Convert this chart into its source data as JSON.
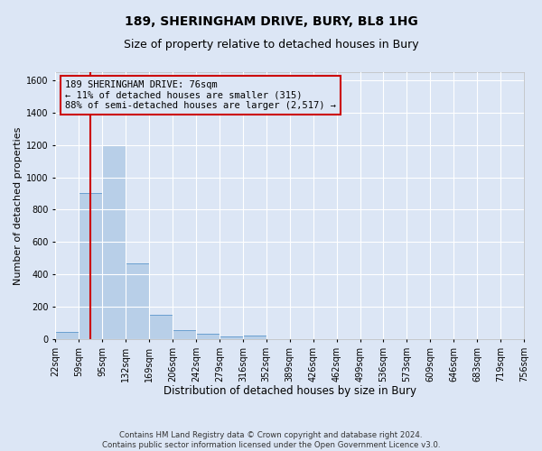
{
  "title1": "189, SHERINGHAM DRIVE, BURY, BL8 1HG",
  "title2": "Size of property relative to detached houses in Bury",
  "xlabel": "Distribution of detached houses by size in Bury",
  "ylabel": "Number of detached properties",
  "footer1": "Contains HM Land Registry data © Crown copyright and database right 2024.",
  "footer2": "Contains public sector information licensed under the Open Government Licence v3.0.",
  "annotation_line1": "189 SHERINGHAM DRIVE: 76sqm",
  "annotation_line2": "← 11% of detached houses are smaller (315)",
  "annotation_line3": "88% of semi-detached houses are larger (2,517) →",
  "bar_values": [
    45,
    900,
    1200,
    470,
    150,
    55,
    30,
    15,
    20,
    0,
    0,
    0,
    0,
    0,
    0,
    0,
    0,
    0,
    0,
    0
  ],
  "bin_labels": [
    "22sqm",
    "59sqm",
    "95sqm",
    "132sqm",
    "169sqm",
    "206sqm",
    "242sqm",
    "279sqm",
    "316sqm",
    "352sqm",
    "389sqm",
    "426sqm",
    "462sqm",
    "499sqm",
    "536sqm",
    "573sqm",
    "609sqm",
    "646sqm",
    "683sqm",
    "719sqm",
    "756sqm"
  ],
  "bar_color": "#b8cfe8",
  "bar_edge_color": "#6a9fd0",
  "vline_bar_index": 1,
  "vline_color": "#cc0000",
  "ylim": [
    0,
    1650
  ],
  "yticks": [
    0,
    200,
    400,
    600,
    800,
    1000,
    1200,
    1400,
    1600
  ],
  "bg_color": "#dce6f5",
  "grid_color": "#ffffff",
  "annotation_box_color": "#cc0000",
  "title1_fontsize": 10,
  "title2_fontsize": 9,
  "xlabel_fontsize": 8.5,
  "ylabel_fontsize": 8,
  "tick_fontsize": 7,
  "annotation_fontsize": 7.5
}
